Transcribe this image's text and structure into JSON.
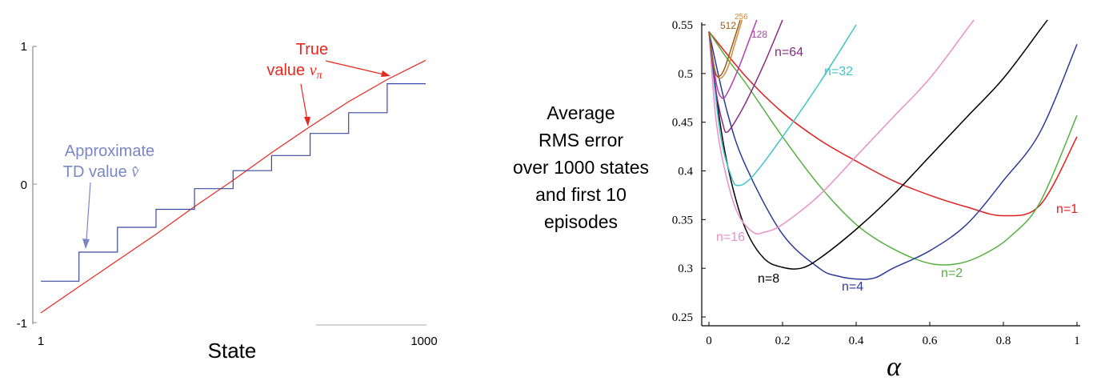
{
  "chart_data": [
    {
      "type": "line",
      "xlabel": "State",
      "x_ticks": [
        "1",
        "1000"
      ],
      "y_ticks": [
        "1",
        "0",
        "-1"
      ],
      "xlim": [
        1,
        1000
      ],
      "ylim": [
        -1,
        1
      ],
      "annotations": {
        "true_value": "True value vπ",
        "approx_value": "Approximate TD value v̂"
      },
      "series": [
        {
          "name": "True value vπ",
          "color": "#e8281e",
          "points": [
            [
              1,
              -0.93
            ],
            [
              100,
              -0.74
            ],
            [
              200,
              -0.55
            ],
            [
              300,
              -0.36
            ],
            [
              400,
              -0.16
            ],
            [
              500,
              0.03
            ],
            [
              600,
              0.23
            ],
            [
              700,
              0.42
            ],
            [
              800,
              0.6
            ],
            [
              900,
              0.76
            ],
            [
              1000,
              0.9
            ]
          ]
        },
        {
          "name": "Approximate TD value v̂",
          "color": "#3b4aa0",
          "steps": [
            {
              "from": 1,
              "to": 100,
              "value": -0.7
            },
            {
              "from": 100,
              "to": 200,
              "value": -0.49
            },
            {
              "from": 200,
              "to": 300,
              "value": -0.31
            },
            {
              "from": 300,
              "to": 400,
              "value": -0.18
            },
            {
              "from": 400,
              "to": 500,
              "value": -0.03
            },
            {
              "from": 500,
              "to": 600,
              "value": 0.1
            },
            {
              "from": 600,
              "to": 700,
              "value": 0.21
            },
            {
              "from": 700,
              "to": 800,
              "value": 0.37
            },
            {
              "from": 800,
              "to": 900,
              "value": 0.52
            },
            {
              "from": 900,
              "to": 1000,
              "value": 0.73
            }
          ]
        }
      ]
    },
    {
      "type": "line",
      "ylabel_lines": [
        "Average",
        "RMS error",
        "over 1000 states",
        "and first 10",
        "episodes"
      ],
      "xlabel": "α",
      "x_ticks": [
        "0",
        "0.2",
        "0.4",
        "0.6",
        "0.8",
        "1"
      ],
      "y_ticks": [
        "0.25",
        "0.3",
        "0.35",
        "0.4",
        "0.45",
        "0.5",
        "0.55"
      ],
      "xlim": [
        0,
        1
      ],
      "ylim": [
        0.25,
        0.55
      ],
      "series": [
        {
          "name": "n=1",
          "color": "#e02020",
          "points": [
            [
              0,
              0.543
            ],
            [
              0.1,
              0.497
            ],
            [
              0.2,
              0.46
            ],
            [
              0.3,
              0.432
            ],
            [
              0.4,
              0.41
            ],
            [
              0.5,
              0.39
            ],
            [
              0.6,
              0.375
            ],
            [
              0.7,
              0.363
            ],
            [
              0.8,
              0.354
            ],
            [
              0.9,
              0.365
            ],
            [
              1.0,
              0.435
            ]
          ]
        },
        {
          "name": "n=2",
          "color": "#55b040",
          "points": [
            [
              0,
              0.543
            ],
            [
              0.05,
              0.515
            ],
            [
              0.1,
              0.49
            ],
            [
              0.2,
              0.435
            ],
            [
              0.3,
              0.385
            ],
            [
              0.4,
              0.345
            ],
            [
              0.5,
              0.32
            ],
            [
              0.6,
              0.305
            ],
            [
              0.68,
              0.305
            ],
            [
              0.75,
              0.315
            ],
            [
              0.82,
              0.333
            ],
            [
              0.9,
              0.368
            ],
            [
              1.0,
              0.457
            ]
          ]
        },
        {
          "name": "n=4",
          "color": "#2c3a98",
          "points": [
            [
              0,
              0.543
            ],
            [
              0.05,
              0.46
            ],
            [
              0.1,
              0.405
            ],
            [
              0.2,
              0.335
            ],
            [
              0.3,
              0.3
            ],
            [
              0.35,
              0.292
            ],
            [
              0.4,
              0.289
            ],
            [
              0.45,
              0.29
            ],
            [
              0.5,
              0.3
            ],
            [
              0.6,
              0.318
            ],
            [
              0.7,
              0.345
            ],
            [
              0.8,
              0.39
            ],
            [
              0.9,
              0.44
            ],
            [
              1.0,
              0.53
            ]
          ]
        },
        {
          "name": "n=8",
          "color": "#000000",
          "points": [
            [
              0,
              0.543
            ],
            [
              0.03,
              0.45
            ],
            [
              0.06,
              0.39
            ],
            [
              0.1,
              0.34
            ],
            [
              0.15,
              0.31
            ],
            [
              0.2,
              0.301
            ],
            [
              0.25,
              0.3
            ],
            [
              0.3,
              0.31
            ],
            [
              0.4,
              0.34
            ],
            [
              0.5,
              0.375
            ],
            [
              0.6,
              0.415
            ],
            [
              0.7,
              0.455
            ],
            [
              0.8,
              0.495
            ],
            [
              0.9,
              0.545
            ],
            [
              0.92,
              0.555
            ]
          ]
        },
        {
          "name": "n=16",
          "color": "#e890c8",
          "points": [
            [
              0,
              0.543
            ],
            [
              0.02,
              0.45
            ],
            [
              0.05,
              0.39
            ],
            [
              0.08,
              0.355
            ],
            [
              0.12,
              0.337
            ],
            [
              0.15,
              0.337
            ],
            [
              0.2,
              0.345
            ],
            [
              0.3,
              0.375
            ],
            [
              0.4,
              0.415
            ],
            [
              0.5,
              0.455
            ],
            [
              0.6,
              0.495
            ],
            [
              0.7,
              0.545
            ],
            [
              0.72,
              0.555
            ]
          ]
        },
        {
          "name": "n=32",
          "color": "#40c4cc",
          "points": [
            [
              0,
              0.543
            ],
            [
              0.03,
              0.44
            ],
            [
              0.06,
              0.395
            ],
            [
              0.08,
              0.385
            ],
            [
              0.12,
              0.395
            ],
            [
              0.2,
              0.435
            ],
            [
              0.3,
              0.49
            ],
            [
              0.4,
              0.55
            ]
          ]
        },
        {
          "name": "n=64",
          "color": "#882a82",
          "points": [
            [
              0,
              0.543
            ],
            [
              0.02,
              0.48
            ],
            [
              0.04,
              0.445
            ],
            [
              0.05,
              0.44
            ],
            [
              0.07,
              0.45
            ],
            [
              0.1,
              0.47
            ],
            [
              0.15,
              0.51
            ],
            [
              0.2,
              0.555
            ]
          ]
        },
        {
          "name": "128",
          "color": "#b040b0",
          "points": [
            [
              0,
              0.543
            ],
            [
              0.02,
              0.49
            ],
            [
              0.035,
              0.475
            ],
            [
              0.05,
              0.48
            ],
            [
              0.08,
              0.505
            ],
            [
              0.11,
              0.535
            ],
            [
              0.13,
              0.555
            ]
          ]
        },
        {
          "name": "256",
          "color": "#d08a40",
          "points": [
            [
              0,
              0.543
            ],
            [
              0.015,
              0.505
            ],
            [
              0.03,
              0.495
            ],
            [
              0.05,
              0.505
            ],
            [
              0.07,
              0.53
            ],
            [
              0.09,
              0.555
            ]
          ]
        },
        {
          "name": "512",
          "color": "#9a5c18",
          "points": [
            [
              0,
              0.543
            ],
            [
              0.015,
              0.505
            ],
            [
              0.025,
              0.497
            ],
            [
              0.04,
              0.503
            ],
            [
              0.06,
              0.525
            ],
            [
              0.085,
              0.555
            ]
          ]
        }
      ]
    }
  ]
}
